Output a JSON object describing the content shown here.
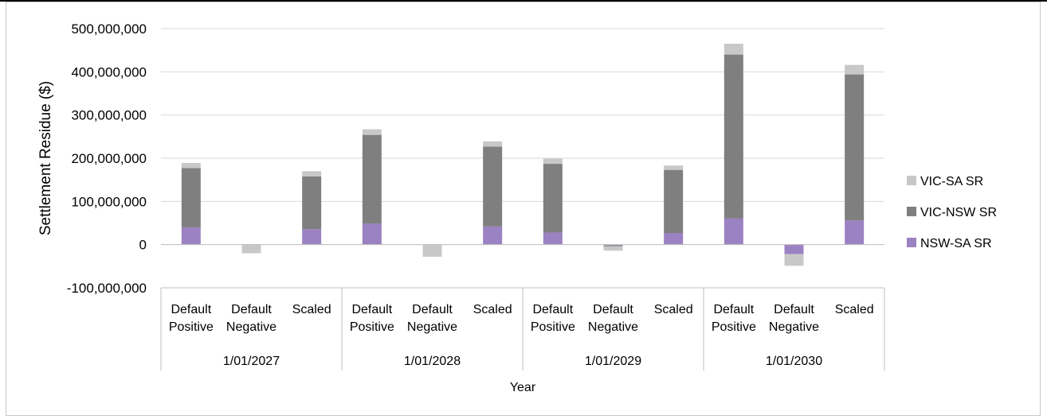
{
  "chart_data": {
    "type": "bar",
    "stacked": true,
    "ylabel": "Settlement Residue ($)",
    "xlabel": "Year",
    "ylim": [
      -100000000,
      500000000
    ],
    "ytick_step": 100000000,
    "yticks": [
      "500,000,000",
      "400,000,000",
      "300,000,000",
      "200,000,000",
      "100,000,000",
      "0",
      "-100,000,000"
    ],
    "grid": true,
    "legend_position": "right",
    "groups": [
      {
        "label": "1/01/2027",
        "categories": [
          "Default Positive",
          "Default Negative",
          "Scaled"
        ]
      },
      {
        "label": "1/01/2028",
        "categories": [
          "Default Positive",
          "Default Negative",
          "Scaled"
        ]
      },
      {
        "label": "1/01/2029",
        "categories": [
          "Default Positive",
          "Default Negative",
          "Scaled"
        ]
      },
      {
        "label": "1/01/2030",
        "categories": [
          "Default Positive",
          "Default Negative",
          "Scaled"
        ]
      }
    ],
    "series": [
      {
        "name": "NSW-SA SR",
        "color": "#9b82c2",
        "values": [
          40000000,
          0,
          36000000,
          49000000,
          0,
          42000000,
          28000000,
          -2000000,
          27000000,
          61000000,
          -22000000,
          56000000
        ]
      },
      {
        "name": "VIC-NSW SR",
        "color": "#7f7f7f",
        "values": [
          137000000,
          0,
          122000000,
          205000000,
          0,
          185000000,
          159000000,
          -2000000,
          146000000,
          379000000,
          0,
          338000000
        ]
      },
      {
        "name": "VIC-SA SR",
        "color": "#c8c8c8",
        "values": [
          12000000,
          -20000000,
          12000000,
          13000000,
          -28000000,
          12000000,
          12000000,
          -10000000,
          10000000,
          25000000,
          -27000000,
          22000000
        ]
      }
    ]
  }
}
